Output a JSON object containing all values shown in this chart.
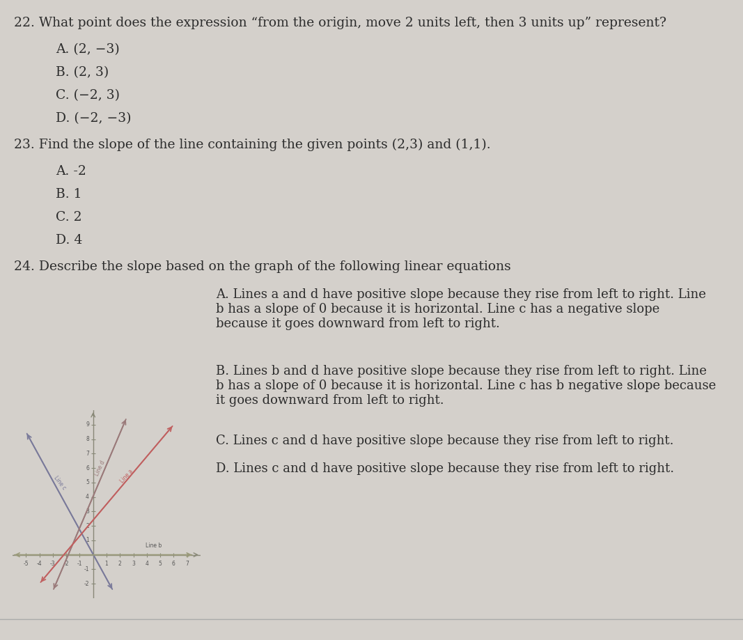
{
  "bg_color": "#d4d0cb",
  "text_color": "#2c2c2c",
  "title_color": "#1a1a1a",
  "q22_text": "22. What point does the expression “from the origin, move 2 units left, then 3 units up” represent?",
  "q22_options": [
    "A. (2, −3)",
    "B. (2, 3)",
    "C. (−2, 3)",
    "D. (−2, −3)"
  ],
  "q23_text": "23. Find the slope of the line containing the given points (2,3) and (1,1).",
  "q23_options": [
    "A. -2",
    "B. 1",
    "C. 2",
    "D. 4"
  ],
  "q24_text": "24. Describe the slope based on the graph of the following linear equations",
  "q24_A": "A. Lines a and d have positive slope because they rise from left to right. Line\nb has a slope of 0 because it is horizontal. Line c has a negative slope\nbecause it goes downward from left to right.",
  "q24_B": "B. Lines b and d have positive slope because they rise from left to right. Line\nb has a slope of 0 because it is horizontal. Line c has b negative slope because\nit goes downward from left to right.",
  "q24_C": "C. Lines c and d have positive slope because they rise from left to right.",
  "q24_D": "D. Lines c and d have positive slope because they rise from left to right.",
  "graph_xlim": [
    -6,
    8
  ],
  "graph_ylim": [
    -3,
    10
  ],
  "line_a_color": "#5a5a7a",
  "line_b_color": "#8a8a6a",
  "line_c_color": "#6a5a5a",
  "line_d_color": "#c06060",
  "line_e_color": "#c06060"
}
